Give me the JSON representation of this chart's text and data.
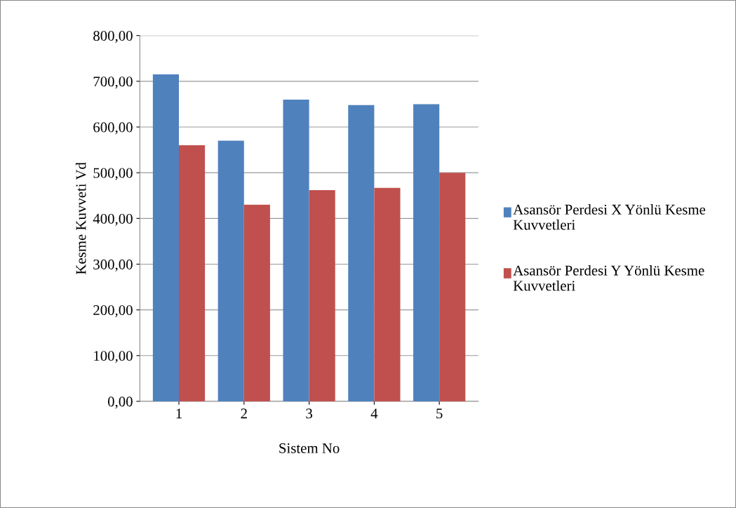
{
  "chart_data": {
    "type": "bar",
    "xlabel": "Sistem No",
    "ylabel": "Kesme Kuvveti Vd",
    "categories": [
      "1",
      "2",
      "3",
      "4",
      "5"
    ],
    "series": [
      {
        "name": "Asansör Perdesi X Yönlü Kesme Kuvvetleri",
        "color": "#4f81bd",
        "values": [
          715,
          570,
          660,
          648,
          650
        ]
      },
      {
        "name": "Asansör Perdesi Y Yönlü Kesme Kuvvetleri",
        "color": "#c0504d",
        "values": [
          560,
          430,
          462,
          467,
          500
        ]
      }
    ],
    "ylim": [
      0,
      800
    ],
    "yticks": [
      {
        "value": 0,
        "label": "0,00"
      },
      {
        "value": 100,
        "label": "100,00"
      },
      {
        "value": 200,
        "label": "200,00"
      },
      {
        "value": 300,
        "label": "300,00"
      },
      {
        "value": 400,
        "label": "400,00"
      },
      {
        "value": 500,
        "label": "500,00"
      },
      {
        "value": 600,
        "label": "600,00"
      },
      {
        "value": 700,
        "label": "700,00"
      },
      {
        "value": 800,
        "label": "800,00"
      }
    ],
    "grid": "y",
    "legend": "right"
  }
}
